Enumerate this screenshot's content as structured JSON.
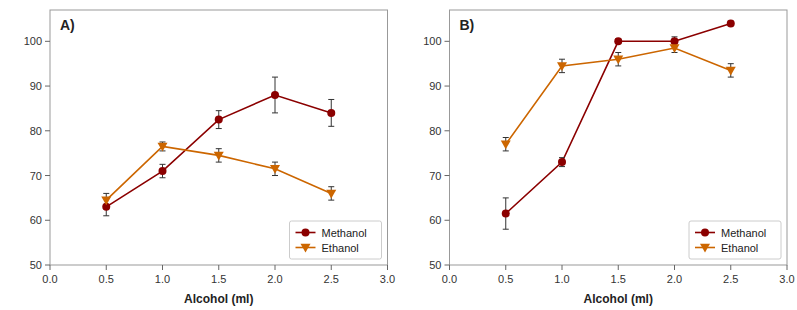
{
  "chart_data": [
    {
      "type": "line",
      "title": "A)",
      "xlabel": "Alcohol (ml)",
      "x": [
        0.5,
        1.0,
        1.5,
        2.0,
        2.5
      ],
      "series": [
        {
          "name": "Methanol",
          "color": "#8B0000",
          "marker": "circle",
          "values": [
            63,
            71,
            82.5,
            88,
            84
          ],
          "errors": [
            2,
            1.5,
            2,
            4,
            3
          ]
        },
        {
          "name": "Ethanol",
          "color": "#CC6600",
          "marker": "triangle-down",
          "values": [
            64.5,
            76.5,
            74.5,
            71.5,
            66
          ],
          "errors": [
            1.5,
            1,
            1.5,
            1.5,
            1.5
          ]
        }
      ],
      "xlim": [
        0.0,
        3.0
      ],
      "ylim": [
        50,
        107
      ],
      "xticks": [
        {
          "value": 0,
          "label": "0.0"
        },
        0.5,
        {
          "value": 1,
          "label": "1.0"
        },
        1.5,
        {
          "value": 2,
          "label": "2.0"
        },
        2.5,
        {
          "value": 3,
          "label": "3.0"
        }
      ],
      "yticks": [
        50,
        60,
        70,
        80,
        90,
        100
      ],
      "grid": false,
      "legend": "lower right"
    },
    {
      "type": "line",
      "title": "B)",
      "xlabel": "Alcohol (ml)",
      "x": [
        0.5,
        1.0,
        1.5,
        2.0,
        2.5
      ],
      "series": [
        {
          "name": "Methanol",
          "color": "#8B0000",
          "marker": "circle",
          "values": [
            61.5,
            73,
            100,
            100,
            104
          ],
          "errors": [
            3.5,
            1,
            0.5,
            1,
            0.5
          ]
        },
        {
          "name": "Ethanol",
          "color": "#CC6600",
          "marker": "triangle-down",
          "values": [
            77,
            94.5,
            96,
            98.5,
            93.5
          ],
          "errors": [
            1.5,
            1.5,
            1.5,
            1,
            1.5
          ]
        }
      ],
      "xlim": [
        0.0,
        3.0
      ],
      "ylim": [
        50,
        107
      ],
      "xticks": [
        {
          "value": 0,
          "label": "0.0"
        },
        0.5,
        {
          "value": 1,
          "label": "1.0"
        },
        1.5,
        {
          "value": 2,
          "label": "2.0"
        },
        2.5,
        {
          "value": 3,
          "label": "3.0"
        }
      ],
      "yticks": [
        50,
        60,
        70,
        80,
        90,
        100
      ],
      "grid": false,
      "legend": "lower right"
    }
  ]
}
